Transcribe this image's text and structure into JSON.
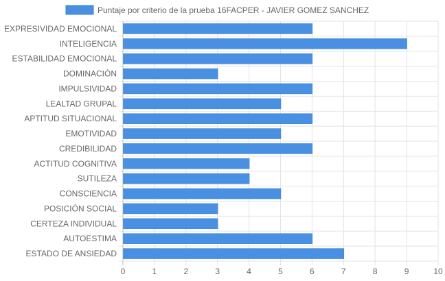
{
  "chart_data": {
    "type": "bar",
    "orientation": "horizontal",
    "legend_position": "top-center",
    "grid": true,
    "series": [
      {
        "name": "Puntaje por criterio de la prueba 16FACPER - JAVIER GOMEZ SANCHEZ",
        "color": "#4a90e2",
        "values": [
          6,
          9,
          6,
          3,
          6,
          5,
          6,
          5,
          6,
          4,
          4,
          5,
          3,
          3,
          6,
          7
        ]
      }
    ],
    "categories": [
      "EXPRESIVIDAD EMOCIONAL",
      "INTELIGENCIA",
      "ESTABILIDAD EMOCIONAL",
      "DOMINACIÓN",
      "IMPULSIVIDAD",
      "LEALTAD GRUPAL",
      "APTITUD SITUACIONAL",
      "EMOTIVIDAD",
      "CREDIBILIDAD",
      "ACTITUD COGNITIVA",
      "SUTILEZA",
      "CONSCIENCIA",
      "POSICIÓN SOCIAL",
      "CERTEZA INDIVIDUAL",
      "AUTOESTIMA",
      "ESTADO DE ANSIEDAD"
    ],
    "xlim": [
      0,
      10
    ],
    "xticks": [
      0,
      1,
      2,
      3,
      4,
      5,
      6,
      7,
      8,
      9,
      10
    ],
    "title": "",
    "xlabel": "",
    "ylabel": ""
  }
}
